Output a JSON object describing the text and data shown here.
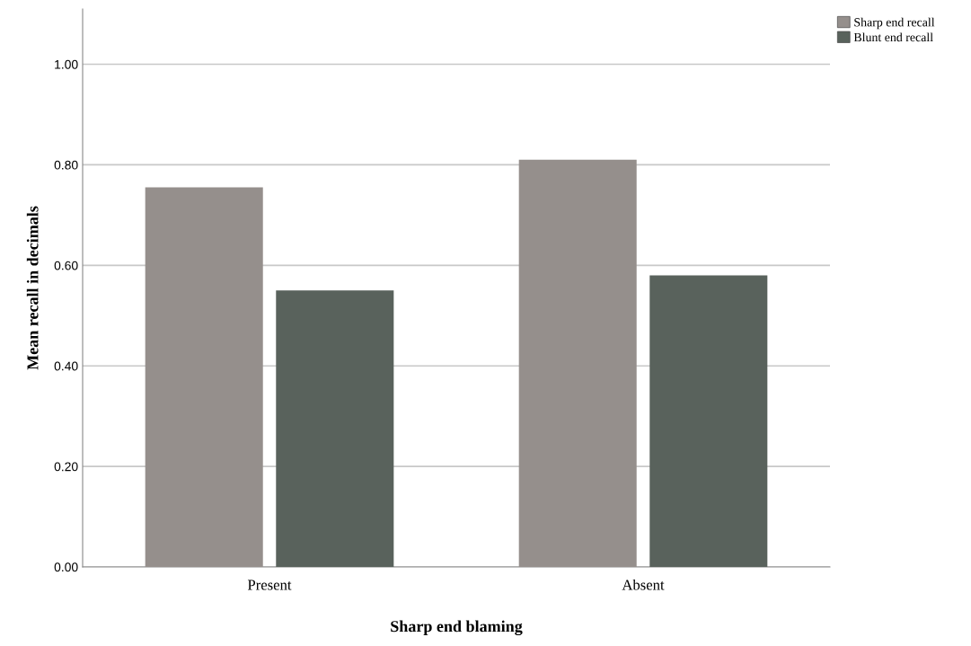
{
  "chart_data": {
    "type": "bar",
    "xlabel": "Sharp end blaming",
    "ylabel": "Mean recall in decimals",
    "categories": [
      "Present",
      "Absent"
    ],
    "series": [
      {
        "name": "Sharp end recall",
        "color": "#958f8c",
        "values": [
          0.755,
          0.81
        ]
      },
      {
        "name": "Blunt end recall",
        "color": "#59625c",
        "values": [
          0.55,
          0.58
        ]
      }
    ],
    "ylim": [
      0,
      1.11
    ],
    "yticks": [
      {
        "value": 0,
        "label": "0.00"
      },
      {
        "value": 0.2,
        "label": "0.20"
      },
      {
        "value": 0.4,
        "label": "0.40"
      },
      {
        "value": 0.6,
        "label": "0.60"
      },
      {
        "value": 0.8,
        "label": "0.80"
      },
      {
        "value": 1.0,
        "label": "1.00"
      }
    ],
    "grid": "y",
    "legend": "top right"
  }
}
